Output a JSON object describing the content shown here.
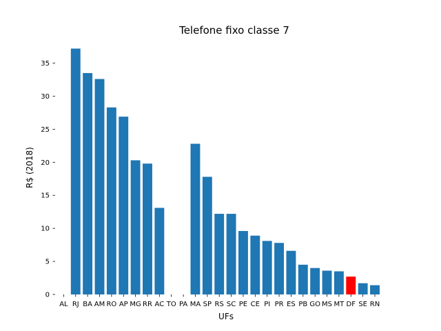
{
  "chart_data": {
    "type": "bar",
    "title": "Telefone fixo classe 7",
    "xlabel": "UFs",
    "ylabel": "R$ (2018)",
    "ylim": [
      0,
      38.5
    ],
    "yticks": [
      0,
      5,
      10,
      15,
      20,
      25,
      30,
      35
    ],
    "grid": false,
    "colors": {
      "default": "#1f77b4",
      "highlight": "#ff0000"
    },
    "highlight_category": "DF",
    "categories": [
      "AL",
      "RJ",
      "BA",
      "AM",
      "RO",
      "AP",
      "MG",
      "RR",
      "AC",
      "TO",
      "PA",
      "MA",
      "SP",
      "RS",
      "SC",
      "PE",
      "CE",
      "PI",
      "PR",
      "ES",
      "PB",
      "GO",
      "MS",
      "MT",
      "DF",
      "SE",
      "RN"
    ],
    "values": [
      0,
      37.2,
      33.5,
      32.6,
      28.3,
      26.9,
      20.3,
      19.8,
      13.1,
      0,
      0,
      22.8,
      17.8,
      12.2,
      12.2,
      9.6,
      8.9,
      8.1,
      7.8,
      6.6,
      4.5,
      4.0,
      3.6,
      3.5,
      2.7,
      1.7,
      1.4
    ]
  }
}
